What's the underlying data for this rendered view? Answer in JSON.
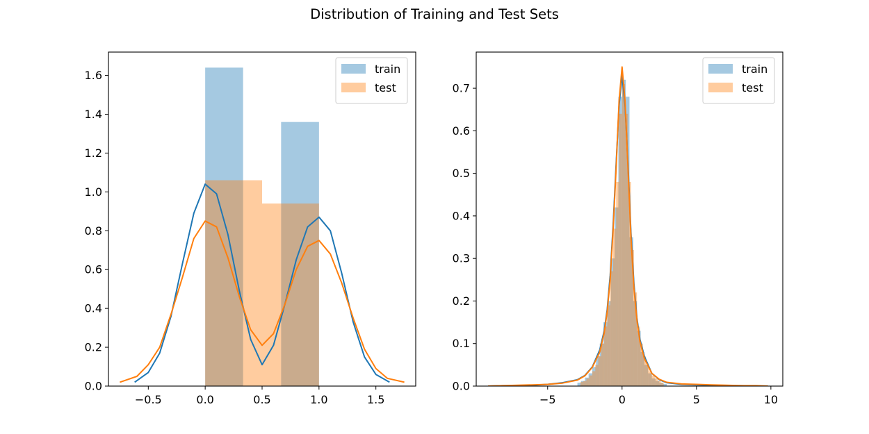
{
  "title": "Distribution of Training and Test Sets",
  "colors": {
    "train": "#1f77b4",
    "test": "#ff7f0e"
  },
  "chart_data": [
    {
      "type": "histogram+kde",
      "xlim": [
        -0.85,
        1.85
      ],
      "ylim": [
        0,
        1.72
      ],
      "xticks": [
        -0.5,
        0.0,
        0.5,
        1.0,
        1.5
      ],
      "xtick_labels": [
        "−0.5",
        "0.0",
        "0.5",
        "1.0",
        "1.5"
      ],
      "yticks": [
        0.0,
        0.2,
        0.4,
        0.6,
        0.8,
        1.0,
        1.2,
        1.4,
        1.6
      ],
      "ytick_labels": [
        "0.0",
        "0.2",
        "0.4",
        "0.6",
        "0.8",
        "1.0",
        "1.2",
        "1.4",
        "1.6"
      ],
      "legend": {
        "position": "top-right",
        "entries": [
          "train",
          "test"
        ]
      },
      "series": [
        {
          "name": "train",
          "bins": [
            {
              "x0": 0.0,
              "x1": 0.333,
              "h": 1.64
            },
            {
              "x0": 0.333,
              "x1": 0.667,
              "h": 0.0
            },
            {
              "x0": 0.667,
              "x1": 1.0,
              "h": 1.36
            }
          ],
          "kde": {
            "x": [
              -0.62,
              -0.5,
              -0.4,
              -0.3,
              -0.2,
              -0.1,
              0.0,
              0.1,
              0.2,
              0.3,
              0.4,
              0.5,
              0.6,
              0.7,
              0.8,
              0.9,
              1.0,
              1.1,
              1.2,
              1.3,
              1.4,
              1.5,
              1.62
            ],
            "y": [
              0.02,
              0.07,
              0.17,
              0.36,
              0.63,
              0.89,
              1.04,
              0.99,
              0.78,
              0.49,
              0.24,
              0.11,
              0.21,
              0.42,
              0.65,
              0.82,
              0.87,
              0.8,
              0.58,
              0.33,
              0.15,
              0.06,
              0.02
            ]
          }
        },
        {
          "name": "test",
          "bins": [
            {
              "x0": 0.0,
              "x1": 0.333,
              "h": 1.06
            },
            {
              "x0": 0.333,
              "x1": 0.5,
              "h": 1.06
            },
            {
              "x0": 0.5,
              "x1": 0.667,
              "h": 0.94
            },
            {
              "x0": 0.667,
              "x1": 1.0,
              "h": 0.94
            }
          ],
          "kde": {
            "x": [
              -0.75,
              -0.6,
              -0.5,
              -0.4,
              -0.3,
              -0.2,
              -0.1,
              0.0,
              0.1,
              0.2,
              0.3,
              0.4,
              0.5,
              0.6,
              0.7,
              0.8,
              0.9,
              1.0,
              1.1,
              1.2,
              1.3,
              1.4,
              1.5,
              1.6,
              1.75
            ],
            "y": [
              0.02,
              0.05,
              0.11,
              0.2,
              0.37,
              0.56,
              0.76,
              0.85,
              0.82,
              0.66,
              0.46,
              0.29,
              0.21,
              0.27,
              0.42,
              0.6,
              0.72,
              0.75,
              0.68,
              0.53,
              0.35,
              0.19,
              0.09,
              0.04,
              0.02
            ]
          }
        }
      ]
    },
    {
      "type": "histogram+kde",
      "xlim": [
        -9.8,
        10.8
      ],
      "ylim": [
        0,
        0.785
      ],
      "xticks": [
        -5,
        0,
        5,
        10
      ],
      "xtick_labels": [
        "−5",
        "0",
        "5",
        "10"
      ],
      "yticks": [
        0.0,
        0.1,
        0.2,
        0.3,
        0.4,
        0.5,
        0.6,
        0.7
      ],
      "ytick_labels": [
        "0.0",
        "0.1",
        "0.2",
        "0.3",
        "0.4",
        "0.5",
        "0.6",
        "0.7"
      ],
      "legend": {
        "position": "top-right",
        "entries": [
          "train",
          "test"
        ]
      },
      "series": [
        {
          "name": "train",
          "bin_width": 0.25,
          "bins_x": [
            -3.0,
            -2.75,
            -2.5,
            -2.25,
            -2.0,
            -1.75,
            -1.5,
            -1.25,
            -1.0,
            -0.75,
            -0.5,
            -0.25,
            0.0,
            0.25,
            0.5,
            0.75,
            1.0,
            1.25,
            1.5,
            1.75,
            2.0,
            2.25,
            2.5,
            2.75
          ],
          "bins_h": [
            0.008,
            0.012,
            0.02,
            0.03,
            0.045,
            0.07,
            0.1,
            0.15,
            0.2,
            0.3,
            0.42,
            0.68,
            0.72,
            0.68,
            0.35,
            0.2,
            0.13,
            0.08,
            0.05,
            0.03,
            0.018,
            0.012,
            0.008,
            0.005
          ],
          "kde": {
            "x": [
              -9,
              -8,
              -7,
              -6,
              -5,
              -4,
              -3,
              -2.5,
              -2,
              -1.5,
              -1.2,
              -1,
              -0.8,
              -0.6,
              -0.4,
              -0.2,
              0,
              0.2,
              0.4,
              0.6,
              0.8,
              1,
              1.2,
              1.5,
              2,
              2.5,
              3,
              4,
              5,
              6,
              7,
              8,
              9,
              9.8
            ],
            "y": [
              0.0,
              0.001,
              0.001,
              0.002,
              0.004,
              0.008,
              0.015,
              0.025,
              0.045,
              0.085,
              0.13,
              0.18,
              0.26,
              0.38,
              0.52,
              0.66,
              0.73,
              0.66,
              0.52,
              0.36,
              0.24,
              0.16,
              0.11,
              0.07,
              0.03,
              0.015,
              0.008,
              0.004,
              0.003,
              0.002,
              0.001,
              0.001,
              0.0,
              0.0
            ]
          }
        },
        {
          "name": "test",
          "bin_width": 0.2,
          "bins_x": [
            -2.8,
            -2.6,
            -2.4,
            -2.2,
            -2.0,
            -1.8,
            -1.6,
            -1.4,
            -1.2,
            -1.0,
            -0.8,
            -0.6,
            -0.4,
            -0.2,
            0.0,
            0.2,
            0.4,
            0.6,
            0.8,
            1.0,
            1.2,
            1.4,
            1.6,
            1.8,
            2.0,
            2.2,
            2.4,
            2.6
          ],
          "bins_h": [
            0.01,
            0.012,
            0.018,
            0.025,
            0.035,
            0.05,
            0.07,
            0.1,
            0.14,
            0.19,
            0.27,
            0.37,
            0.48,
            0.64,
            0.71,
            0.64,
            0.48,
            0.32,
            0.22,
            0.14,
            0.1,
            0.07,
            0.05,
            0.035,
            0.025,
            0.018,
            0.012,
            0.008
          ],
          "kde": {
            "x": [
              -9,
              -8,
              -7,
              -6,
              -5,
              -4,
              -3,
              -2.5,
              -2,
              -1.5,
              -1.2,
              -1,
              -0.8,
              -0.6,
              -0.4,
              -0.2,
              0,
              0.2,
              0.4,
              0.6,
              0.8,
              1,
              1.2,
              1.5,
              2,
              2.5,
              3,
              4,
              5,
              6,
              7,
              8,
              9,
              9.8
            ],
            "y": [
              0.0,
              0.001,
              0.002,
              0.003,
              0.004,
              0.007,
              0.014,
              0.024,
              0.044,
              0.08,
              0.125,
              0.175,
              0.25,
              0.37,
              0.51,
              0.67,
              0.75,
              0.67,
              0.51,
              0.35,
              0.23,
              0.155,
              0.105,
              0.065,
              0.03,
              0.016,
              0.009,
              0.005,
              0.004,
              0.003,
              0.002,
              0.001,
              0.001,
              0.0
            ]
          }
        }
      ]
    }
  ]
}
